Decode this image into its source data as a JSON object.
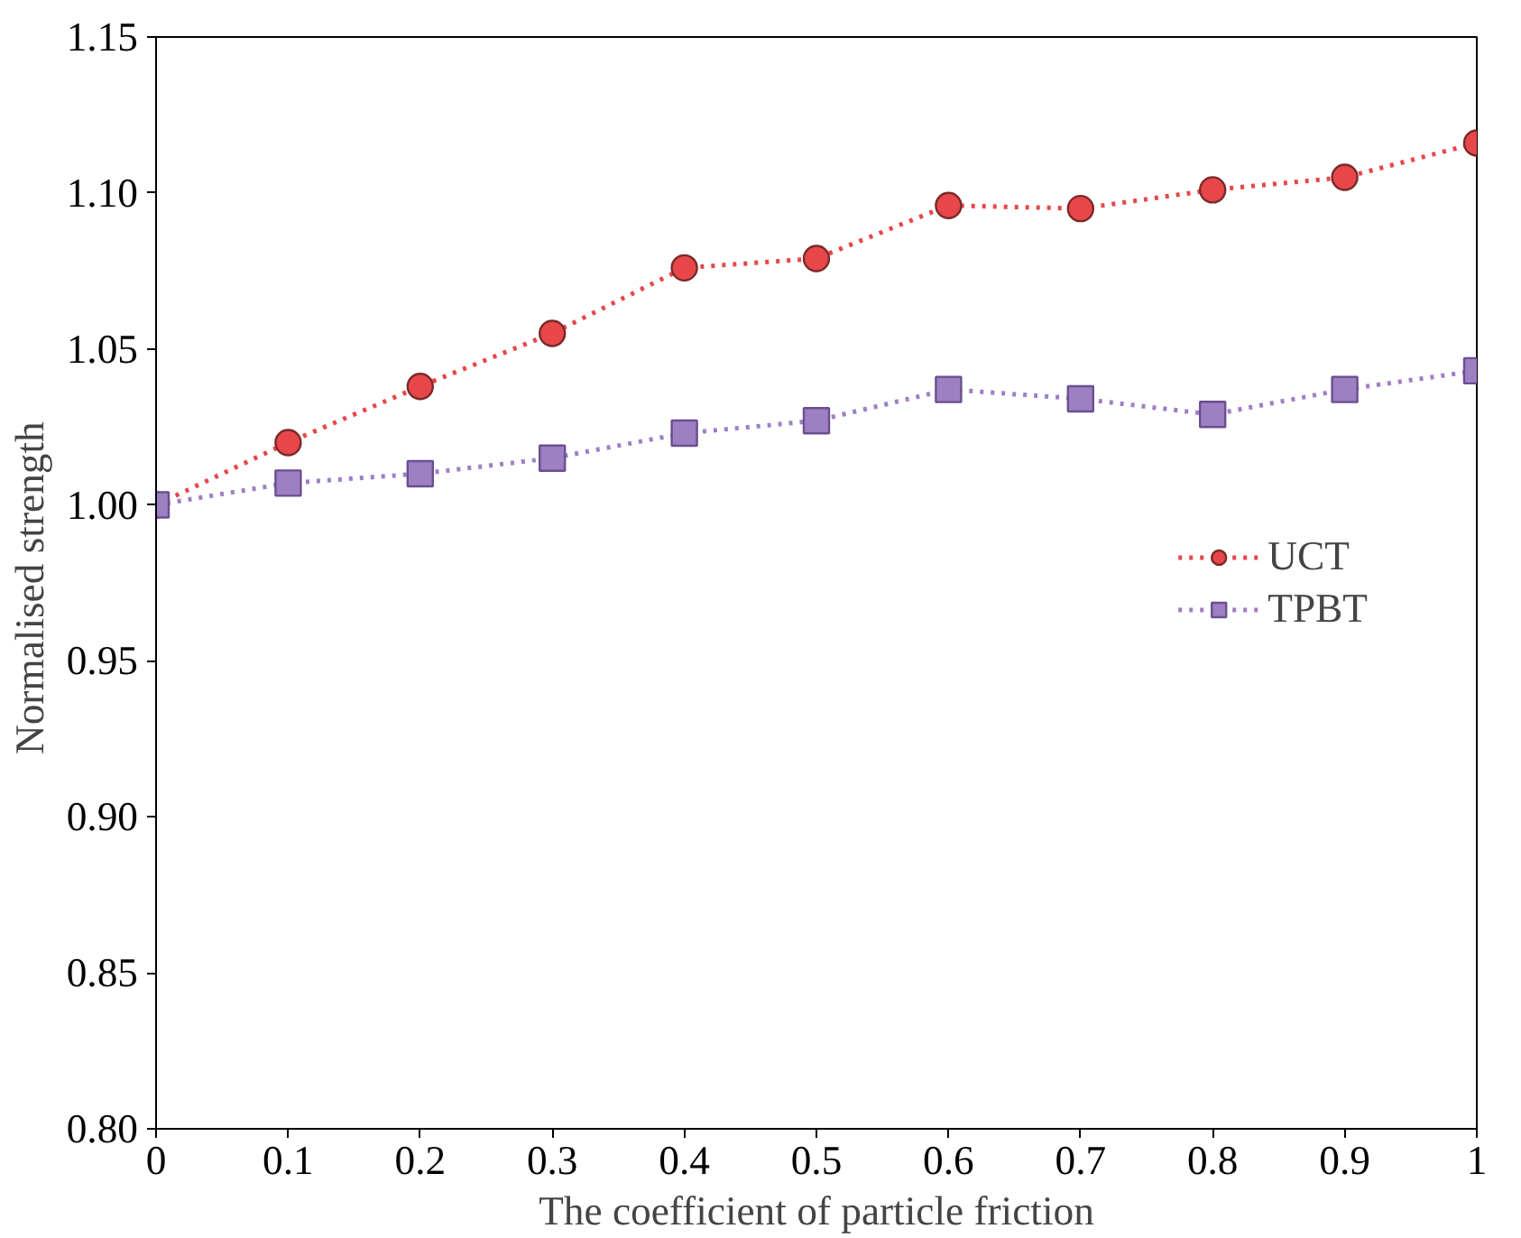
{
  "chart_data": {
    "type": "line",
    "xlabel": "The coefficient of particle friction",
    "ylabel": "Normalised  strength",
    "x": [
      0,
      0.1,
      0.2,
      0.3,
      0.4,
      0.5,
      0.6,
      0.7,
      0.8,
      0.9,
      1
    ],
    "series": [
      {
        "name": "UCT",
        "color": "#e8474a",
        "marker": "circle",
        "line_style": "dotted",
        "values": [
          1.0,
          1.02,
          1.038,
          1.055,
          1.076,
          1.079,
          1.096,
          1.095,
          1.101,
          1.105,
          1.116
        ]
      },
      {
        "name": "TPBT",
        "color": "#9f7fc4",
        "marker": "square",
        "line_style": "dotted",
        "values": [
          1.0,
          1.007,
          1.01,
          1.015,
          1.023,
          1.027,
          1.037,
          1.034,
          1.029,
          1.037,
          1.043
        ]
      }
    ],
    "xlim": [
      0,
      1
    ],
    "xticks": [
      0,
      0.1,
      0.2,
      0.3,
      0.4,
      0.5,
      0.6,
      0.7,
      0.8,
      0.9,
      1
    ],
    "ylim": [
      0.8,
      1.15
    ],
    "yticks": [
      {
        "value": 0.8,
        "label": "0.80"
      },
      {
        "value": 0.85,
        "label": "0.85"
      },
      {
        "value": 0.9,
        "label": "0.90"
      },
      {
        "value": 0.95,
        "label": "0.95"
      },
      {
        "value": 1.0,
        "label": "1.00"
      },
      {
        "value": 1.05,
        "label": "1.05"
      },
      {
        "value": 1.1,
        "label": "1.10"
      },
      {
        "value": 1.15,
        "label": "1.15"
      }
    ],
    "grid": false,
    "legend": "right"
  }
}
